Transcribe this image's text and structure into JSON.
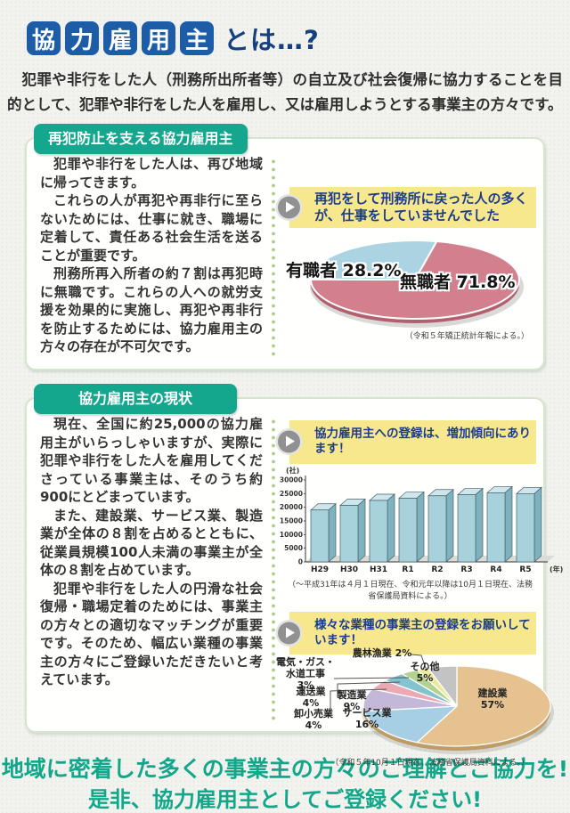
{
  "header": {
    "title_boxes": [
      "協",
      "力",
      "雇",
      "用",
      "主"
    ],
    "title_suffix": "とは…?",
    "intro": "犯罪や非行をした人（刑務所出所者等）の自立及び社会復帰に協力することを目的として、犯罪や非行をした人を雇用し、又は雇用しようとする事業主の方々です。"
  },
  "section_reoffense": {
    "badge": "再犯防止を支える協力雇用主",
    "paragraphs": [
      "犯罪や非行をした人は、再び地域に帰ってきます。",
      "これらの人が再犯や再非行に至らないためには、仕事に就き、職場に定着して、責任ある社会生活を送ることが重要です。",
      "刑務所再入所者の約７割は再犯時に無職です。これらの人への就労支援を効果的に実施し、再犯や再非行を防止するためには、協力雇用主の方々の存在が不可欠です。"
    ],
    "callout": "再犯をして刑務所に戻った人の多くが、仕事をしていませんでした",
    "source": "（令和５年矯正統計年報による。）"
  },
  "section_status": {
    "badge": "協力雇用主の現状",
    "paragraphs": [
      "現在、全国に約25,000の協力雇用主がいらっしゃいますが、実際に犯罪や非行をした人を雇用してくださっている事業主は、そのうち約900にとどまっています。",
      "また、建設業、サービス業、製造業が全体の８割を占めるとともに、従業員規模100人未満の事業主が全体の８割を占めています。",
      "犯罪や非行をした人の円滑な社会復帰・職場定着のためには、事業主の方々との適切なマッチングが重要です。そのため、幅広い業種の事業主の方々にご登録いただきたいと考えています。"
    ],
    "callout_bar": "協力雇用主への登録は、増加傾向にあります！",
    "bar_source": "（～平成31年は４月１日現在、令和元年以降は10月１日現在、法務省保護局資料による。）",
    "callout_pie": "様々な業種の事業主の登録をお願いしています！",
    "pie_source": "（令和５年10月１日現在、法務省保護局資料による。）"
  },
  "footer": {
    "line1": "地域に密着した多くの事業主の方々のご理解とご協力を!",
    "line2": "是非、協力雇用主としてご登録ください!"
  },
  "colors": {
    "title_box_blue": "#1d5ca6",
    "badge_teal": "#15a78d",
    "callout_yellow": "#f8e88d",
    "callout_text_navy": "#1c3c8e",
    "footer_teal": "#12a78b"
  },
  "chart_data": [
    {
      "type": "pie",
      "description": "再犯をして刑務所に戻った人の就労状況",
      "labels": [
        "有職者",
        "無職者"
      ],
      "values": [
        28.2,
        71.8
      ],
      "display_labels": [
        "有職者 28.2%",
        "無職者 71.8%"
      ],
      "colors": [
        "#abd3e2",
        "#d2808e"
      ],
      "source": "（令和５年矯正統計年報による。）"
    },
    {
      "type": "bar",
      "title": "協力雇用主への登録は、増加傾向にあります！",
      "categories": [
        "H29",
        "H30",
        "H31",
        "R1",
        "R2",
        "R3",
        "R4",
        "R5"
      ],
      "values": [
        19000,
        20700,
        22500,
        23300,
        24200,
        24600,
        25300,
        25000
      ],
      "unit_y": "(社)",
      "unit_x": "(年)",
      "yticks": [
        0,
        5000,
        10000,
        15000,
        20000,
        25000,
        30000
      ],
      "ylim": [
        0,
        30000
      ],
      "bar_color": "#a7d2db",
      "source": "（～平成31年は４月１日現在、令和元年以降は10月１日現在、法務省保護局資料による。）"
    },
    {
      "type": "pie",
      "title": "様々な業種の事業主の登録をお願いしています！",
      "labels": [
        "建設業",
        "サービス業",
        "製造業",
        "卸小売業",
        "運送業",
        "電気・ガス・水道工事",
        "農林漁業",
        "その他"
      ],
      "values": [
        57,
        16,
        9,
        4,
        4,
        3,
        2,
        5
      ],
      "display_labels": [
        "建設業\n57%",
        "サービス業\n16%",
        "製造業\n9%",
        "卸小売業\n4%",
        "運送業\n4%",
        "電気・ガス・\n水道工事\n3%",
        "農林漁業 2%",
        "その他\n5%"
      ],
      "colors": [
        "#e5c28f",
        "#a6cfe6",
        "#c4b8d9",
        "#eba9b4",
        "#83c3cd",
        "#b2d28d",
        "#ece9a0",
        "#c3c3c3"
      ],
      "source": "（令和５年10月１日現在、法務省保護局資料による。）"
    }
  ]
}
